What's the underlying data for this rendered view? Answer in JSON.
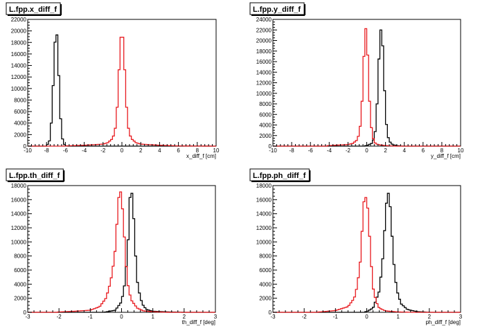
{
  "colors": {
    "series_black": "#000000",
    "series_red": "#e8191e",
    "axis": "#000000"
  },
  "chart_data": [
    {
      "type": "histogram",
      "title": "L.fpp.x_diff_f",
      "xlabel": "x_diff_f [cm]",
      "xlim": [
        -10,
        10
      ],
      "ylim": [
        0,
        22000
      ],
      "x_ticks": [
        -10,
        -8,
        -6,
        -4,
        -2,
        0,
        2,
        4,
        6,
        8,
        10
      ],
      "x_tick_labels": [
        "-10",
        "-8",
        "-6",
        "-4",
        "-2",
        "0",
        "2",
        "4",
        "6",
        "8",
        "10"
      ],
      "y_ticks": [
        0,
        2000,
        4000,
        6000,
        8000,
        10000,
        12000,
        14000,
        16000,
        18000,
        20000,
        22000
      ],
      "y_tick_labels": [
        "0",
        "2000",
        "4000",
        "6000",
        "8000",
        "10000",
        "12000",
        "14000",
        "16000",
        "18000",
        "20000",
        "22000"
      ],
      "series": [
        {
          "color": "#000000",
          "x": [
            -7.8,
            -7.6,
            -7.4,
            -7.2,
            -7.0,
            -6.8,
            -6.6,
            -6.4,
            -6.2,
            -6.0,
            -5.8
          ],
          "y": [
            300,
            1500,
            6500,
            14500,
            21600,
            17000,
            7500,
            2000,
            500,
            100,
            0
          ]
        },
        {
          "color": "#e8191e",
          "x": [
            -6.0,
            -4.0,
            -2.0,
            -1.5,
            -1.0,
            -0.8,
            -0.6,
            -0.4,
            -0.2,
            0.0,
            0.2,
            0.4,
            0.6,
            0.8,
            1.0,
            1.5,
            2.0,
            4.0,
            6.0,
            10.0
          ],
          "y": [
            30,
            150,
            350,
            600,
            1300,
            2200,
            4000,
            9500,
            17000,
            20800,
            17000,
            9500,
            4000,
            2200,
            1300,
            600,
            350,
            150,
            30,
            0
          ]
        }
      ]
    },
    {
      "type": "histogram",
      "title": "L.fpp.y_diff_f",
      "xlabel": "y_diff_f [cm]",
      "xlim": [
        -10,
        10
      ],
      "ylim": [
        0,
        24000
      ],
      "x_ticks": [
        -10,
        -8,
        -6,
        -4,
        -2,
        0,
        2,
        4,
        6,
        8,
        10
      ],
      "x_tick_labels": [
        "-10",
        "-8",
        "-6",
        "-4",
        "-2",
        "0",
        "2",
        "4",
        "6",
        "8",
        "10"
      ],
      "y_ticks": [
        0,
        2000,
        4000,
        6000,
        8000,
        10000,
        12000,
        14000,
        16000,
        18000,
        20000,
        22000,
        24000
      ],
      "y_tick_labels": [
        "0",
        "2000",
        "4000",
        "6000",
        "8000",
        "10000",
        "12000",
        "14000",
        "16000",
        "18000",
        "20000",
        "22000",
        "24000"
      ],
      "series": [
        {
          "color": "#000000",
          "x": [
            0.0,
            0.5,
            0.8,
            1.0,
            1.2,
            1.4,
            1.6,
            1.8,
            2.0,
            2.2,
            2.4,
            2.6,
            2.8,
            3.2,
            3.8
          ],
          "y": [
            100,
            500,
            1500,
            4000,
            12000,
            21000,
            23000,
            15000,
            6000,
            2200,
            1000,
            500,
            250,
            100,
            0
          ]
        },
        {
          "color": "#e8191e",
          "x": [
            -4.0,
            -2.0,
            -1.5,
            -1.0,
            -0.8,
            -0.6,
            -0.4,
            -0.2,
            0.0,
            0.2,
            0.4,
            0.6,
            0.8,
            1.0,
            1.5,
            2.0,
            3.0
          ],
          "y": [
            100,
            300,
            500,
            1200,
            2500,
            5000,
            12000,
            22000,
            22500,
            12000,
            5000,
            2000,
            800,
            400,
            200,
            100,
            0
          ]
        }
      ]
    },
    {
      "type": "histogram",
      "title": "L.fpp.th_diff_f",
      "xlabel": "th_diff_f [deg]",
      "xlim": [
        -3,
        3
      ],
      "ylim": [
        0,
        18000
      ],
      "x_ticks": [
        -3,
        -2,
        -1,
        0,
        1,
        2,
        3
      ],
      "x_tick_labels": [
        "-3",
        "-2",
        "-1",
        "0",
        "1",
        "2",
        "3"
      ],
      "y_ticks": [
        0,
        2000,
        4000,
        6000,
        8000,
        10000,
        12000,
        14000,
        16000,
        18000
      ],
      "y_tick_labels": [
        "0",
        "2000",
        "4000",
        "6000",
        "8000",
        "10000",
        "12000",
        "14000",
        "16000",
        "18000"
      ],
      "series": [
        {
          "color": "#000000",
          "x": [
            -0.5,
            -0.2,
            0.0,
            0.1,
            0.2,
            0.25,
            0.3,
            0.35,
            0.4,
            0.45,
            0.5,
            0.6,
            0.7,
            0.8,
            1.0,
            1.5,
            2.0
          ],
          "y": [
            50,
            300,
            1500,
            4000,
            9000,
            15500,
            17500,
            16500,
            12500,
            8000,
            4500,
            2000,
            900,
            400,
            150,
            50,
            0
          ]
        },
        {
          "color": "#e8191e",
          "x": [
            -2.0,
            -1.5,
            -1.0,
            -0.7,
            -0.5,
            -0.4,
            -0.3,
            -0.2,
            -0.15,
            -0.1,
            -0.05,
            0.0,
            0.05,
            0.1,
            0.15,
            0.2,
            0.3,
            0.5,
            0.7,
            1.0,
            1.5
          ],
          "y": [
            50,
            150,
            300,
            800,
            2000,
            3500,
            5500,
            9000,
            12500,
            16000,
            17500,
            16500,
            13500,
            10000,
            6500,
            4000,
            1800,
            600,
            200,
            80,
            0
          ]
        }
      ]
    },
    {
      "type": "histogram",
      "title": "L.fpp.ph_diff_f",
      "xlabel": "ph_diff_f [deg]",
      "xlim": [
        -3,
        3
      ],
      "ylim": [
        0,
        18000
      ],
      "x_ticks": [
        -3,
        -2,
        -1,
        0,
        1,
        2,
        3
      ],
      "x_tick_labels": [
        "-3",
        "-2",
        "-1",
        "0",
        "1",
        "2",
        "3"
      ],
      "y_ticks": [
        0,
        2000,
        4000,
        6000,
        8000,
        10000,
        12000,
        14000,
        16000,
        18000
      ],
      "y_tick_labels": [
        "0",
        "2000",
        "4000",
        "6000",
        "8000",
        "10000",
        "12000",
        "14000",
        "16000",
        "18000"
      ],
      "series": [
        {
          "color": "#000000",
          "x": [
            0.0,
            0.2,
            0.4,
            0.5,
            0.55,
            0.6,
            0.65,
            0.7,
            0.75,
            0.8,
            0.85,
            0.9,
            1.0,
            1.1,
            1.3,
            1.6,
            2.0
          ],
          "y": [
            100,
            600,
            3000,
            7000,
            10000,
            14000,
            16500,
            17000,
            15000,
            11500,
            8000,
            5000,
            2500,
            1200,
            400,
            100,
            0
          ]
        },
        {
          "color": "#e8191e",
          "x": [
            -1.5,
            -1.0,
            -0.6,
            -0.4,
            -0.3,
            -0.2,
            -0.15,
            -0.1,
            -0.05,
            0.0,
            0.05,
            0.1,
            0.15,
            0.2,
            0.3,
            0.4,
            0.6,
            1.0,
            1.5
          ],
          "y": [
            50,
            250,
            800,
            2000,
            3800,
            7500,
            11500,
            15500,
            16500,
            16000,
            14000,
            10000,
            6500,
            3500,
            1500,
            600,
            200,
            50,
            0
          ]
        }
      ]
    }
  ]
}
